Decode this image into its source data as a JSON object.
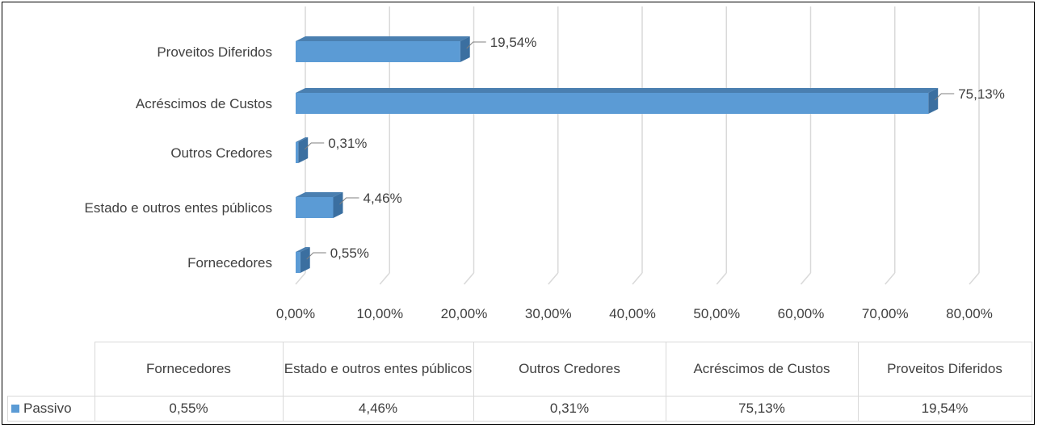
{
  "chart_data": {
    "type": "bar",
    "orientation": "horizontal",
    "style": "3d",
    "categories": [
      "Fornecedores",
      "Estado e outros entes públicos",
      "Outros Credores",
      "Acréscimos de Custos",
      "Proveitos Diferidos"
    ],
    "series": [
      {
        "name": "Passivo",
        "values": [
          0.55,
          4.46,
          0.31,
          75.13,
          19.54
        ],
        "labels": [
          "0,55%",
          "4,46%",
          "0,31%",
          "75,13%",
          "19,54%"
        ]
      }
    ],
    "xlim": [
      0,
      80
    ],
    "xticks": [
      0,
      10,
      20,
      30,
      40,
      50,
      60,
      70,
      80
    ],
    "xtick_labels": [
      "0,00%",
      "10,00%",
      "20,00%",
      "30,00%",
      "40,00%",
      "50,00%",
      "60,00%",
      "70,00%",
      "80,00%"
    ],
    "grid": true,
    "data_table": true,
    "colors": {
      "bar_front": "#5b9bd5",
      "bar_top": "#4a7fb0",
      "bar_side": "#3b6fa0",
      "grid": "#d9d9d9",
      "text": "#404040"
    }
  },
  "table": {
    "headers": [
      "Fornecedores",
      "Estado e outros entes públicos",
      "Outros Credores",
      "Acréscimos de Custos",
      "Proveitos Diferidos"
    ],
    "series_name": "Passivo",
    "values": [
      "0,55%",
      "4,46%",
      "0,31%",
      "75,13%",
      "19,54%"
    ]
  }
}
